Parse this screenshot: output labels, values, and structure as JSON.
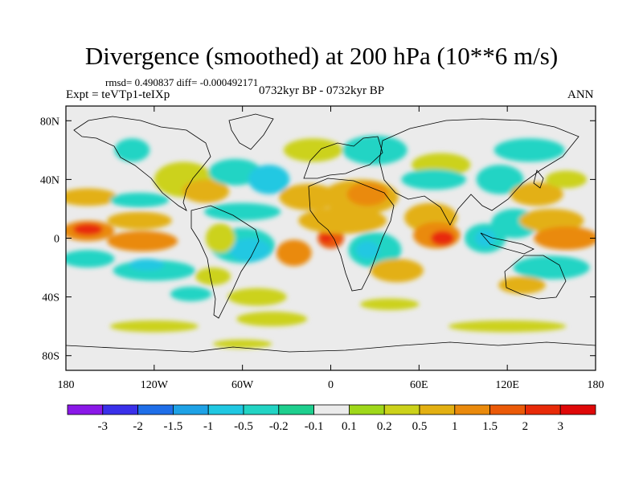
{
  "chart_data": {
    "type": "heatmap",
    "title": "Divergence (smoothed) at 200 hPa (10**6 m/s)",
    "stats_line": "rmsd= 0.490837 diff= -0.000492171",
    "left_subtitle": "Expt = teVTp1-teIXp",
    "center_subtitle": "0732kyr BP - 0732kyr BP",
    "right_subtitle": "ANN",
    "x_range": [
      -180,
      180
    ],
    "y_range": [
      -90,
      90
    ],
    "x_ticks": [
      {
        "value": -180,
        "label": "180"
      },
      {
        "value": -120,
        "label": "120W"
      },
      {
        "value": -60,
        "label": "60W"
      },
      {
        "value": 0,
        "label": "0"
      },
      {
        "value": 60,
        "label": "60E"
      },
      {
        "value": 120,
        "label": "120E"
      },
      {
        "value": 180,
        "label": "180"
      }
    ],
    "y_ticks": [
      {
        "value": 80,
        "label": "80N"
      },
      {
        "value": 40,
        "label": "40N"
      },
      {
        "value": 0,
        "label": "0"
      },
      {
        "value": -40,
        "label": "40S"
      },
      {
        "value": -80,
        "label": "80S"
      }
    ],
    "colorbar": {
      "levels": [
        "-3",
        "-2",
        "-1.5",
        "-1",
        "-0.5",
        "-0.2",
        "-0.1",
        "0.1",
        "0.2",
        "0.5",
        "1",
        "1.5",
        "2",
        "3"
      ],
      "colors": [
        "#8a18e8",
        "#3a30ea",
        "#1f6ee8",
        "#1ea2e6",
        "#20c8e2",
        "#22d4c4",
        "#1ecf8e",
        "#ebebeb",
        "#9fd81a",
        "#ccd21a",
        "#e3b012",
        "#ea8a0c",
        "#eb5a08",
        "#e82a08",
        "#df0808"
      ]
    },
    "regions": [
      {
        "lon": -165,
        "lat": 5,
        "rx": 18,
        "ry": 7,
        "value": 1.0
      },
      {
        "lon": -165,
        "lat": 6,
        "rx": 10,
        "ry": 4,
        "value": 2.0
      },
      {
        "lon": -165,
        "lat": 28,
        "rx": 20,
        "ry": 6,
        "value": 0.5
      },
      {
        "lon": -165,
        "lat": -14,
        "rx": 18,
        "ry": 6,
        "value": -0.5
      },
      {
        "lon": -130,
        "lat": 12,
        "rx": 22,
        "ry": 6,
        "value": 0.5
      },
      {
        "lon": -128,
        "lat": -2,
        "rx": 24,
        "ry": 7,
        "value": 1.0
      },
      {
        "lon": -130,
        "lat": 26,
        "rx": 20,
        "ry": 5,
        "value": -0.5
      },
      {
        "lon": -120,
        "lat": -22,
        "rx": 28,
        "ry": 7,
        "value": -0.5
      },
      {
        "lon": -125,
        "lat": -18,
        "rx": 12,
        "ry": 4,
        "value": -1.0
      },
      {
        "lon": -135,
        "lat": 60,
        "rx": 12,
        "ry": 8,
        "value": -0.5
      },
      {
        "lon": -100,
        "lat": 40,
        "rx": 20,
        "ry": 12,
        "value": 0.2
      },
      {
        "lon": -85,
        "lat": 32,
        "rx": 16,
        "ry": 8,
        "value": 0.5
      },
      {
        "lon": -65,
        "lat": 45,
        "rx": 18,
        "ry": 9,
        "value": -0.5
      },
      {
        "lon": -42,
        "lat": 40,
        "rx": 14,
        "ry": 10,
        "value": -1.0
      },
      {
        "lon": -60,
        "lat": 18,
        "rx": 26,
        "ry": 6,
        "value": -0.5
      },
      {
        "lon": -60,
        "lat": -5,
        "rx": 22,
        "ry": 12,
        "value": -0.5
      },
      {
        "lon": -55,
        "lat": -8,
        "rx": 14,
        "ry": 8,
        "value": -1.0
      },
      {
        "lon": -75,
        "lat": 0,
        "rx": 10,
        "ry": 10,
        "value": 0.2
      },
      {
        "lon": -80,
        "lat": -26,
        "rx": 12,
        "ry": 6,
        "value": 0.2
      },
      {
        "lon": -50,
        "lat": -40,
        "rx": 20,
        "ry": 6,
        "value": 0.2
      },
      {
        "lon": -95,
        "lat": -38,
        "rx": 14,
        "ry": 5,
        "value": -0.5
      },
      {
        "lon": -25,
        "lat": -10,
        "rx": 12,
        "ry": 9,
        "value": 1.0
      },
      {
        "lon": -15,
        "lat": 28,
        "rx": 20,
        "ry": 9,
        "value": 0.5
      },
      {
        "lon": -12,
        "lat": 60,
        "rx": 20,
        "ry": 8,
        "value": 0.2
      },
      {
        "lon": 0,
        "lat": 0,
        "rx": 9,
        "ry": 7,
        "value": 1.5
      },
      {
        "lon": -3,
        "lat": 0,
        "rx": 4,
        "ry": 3,
        "value": 2.5
      },
      {
        "lon": 8,
        "lat": 12,
        "rx": 30,
        "ry": 9,
        "value": 0.5
      },
      {
        "lon": 20,
        "lat": 28,
        "rx": 26,
        "ry": 12,
        "value": 0.5
      },
      {
        "lon": 25,
        "lat": 30,
        "rx": 14,
        "ry": 8,
        "value": 1.0
      },
      {
        "lon": 30,
        "lat": -8,
        "rx": 18,
        "ry": 12,
        "value": -0.5
      },
      {
        "lon": 25,
        "lat": -8,
        "rx": 8,
        "ry": 6,
        "value": -1.0
      },
      {
        "lon": 45,
        "lat": -22,
        "rx": 18,
        "ry": 8,
        "value": 0.5
      },
      {
        "lon": 30,
        "lat": 60,
        "rx": 22,
        "ry": 10,
        "value": -0.5
      },
      {
        "lon": 75,
        "lat": 50,
        "rx": 20,
        "ry": 8,
        "value": 0.2
      },
      {
        "lon": 70,
        "lat": 40,
        "rx": 22,
        "ry": 7,
        "value": -0.5
      },
      {
        "lon": 68,
        "lat": 14,
        "rx": 18,
        "ry": 10,
        "value": 0.5
      },
      {
        "lon": 72,
        "lat": 2,
        "rx": 16,
        "ry": 9,
        "value": 1.0
      },
      {
        "lon": 76,
        "lat": 0,
        "rx": 8,
        "ry": 5,
        "value": 2.0
      },
      {
        "lon": 105,
        "lat": 0,
        "rx": 14,
        "ry": 10,
        "value": -0.5
      },
      {
        "lon": 105,
        "lat": 0,
        "rx": 7,
        "ry": 6,
        "value": -1.0
      },
      {
        "lon": 125,
        "lat": 10,
        "rx": 16,
        "ry": 10,
        "value": -0.5
      },
      {
        "lon": 115,
        "lat": 40,
        "rx": 16,
        "ry": 10,
        "value": -0.5
      },
      {
        "lon": 140,
        "lat": 30,
        "rx": 18,
        "ry": 8,
        "value": 0.5
      },
      {
        "lon": 150,
        "lat": 12,
        "rx": 22,
        "ry": 8,
        "value": 0.5
      },
      {
        "lon": 160,
        "lat": 0,
        "rx": 22,
        "ry": 8,
        "value": 1.0
      },
      {
        "lon": 150,
        "lat": -20,
        "rx": 26,
        "ry": 8,
        "value": -0.5
      },
      {
        "lon": 130,
        "lat": -32,
        "rx": 16,
        "ry": 6,
        "value": 0.5
      },
      {
        "lon": 135,
        "lat": 60,
        "rx": 24,
        "ry": 8,
        "value": -0.5
      },
      {
        "lon": 160,
        "lat": 40,
        "rx": 14,
        "ry": 6,
        "value": 0.2
      },
      {
        "lon": -40,
        "lat": -55,
        "rx": 24,
        "ry": 5,
        "value": 0.2
      },
      {
        "lon": 40,
        "lat": -45,
        "rx": 20,
        "ry": 4,
        "value": 0.2
      },
      {
        "lon": 120,
        "lat": -60,
        "rx": 40,
        "ry": 4,
        "value": 0.2
      },
      {
        "lon": -120,
        "lat": -60,
        "rx": 30,
        "ry": 4,
        "value": 0.2
      },
      {
        "lon": -60,
        "lat": -72,
        "rx": 20,
        "ry": 3,
        "value": 0.2
      }
    ]
  }
}
